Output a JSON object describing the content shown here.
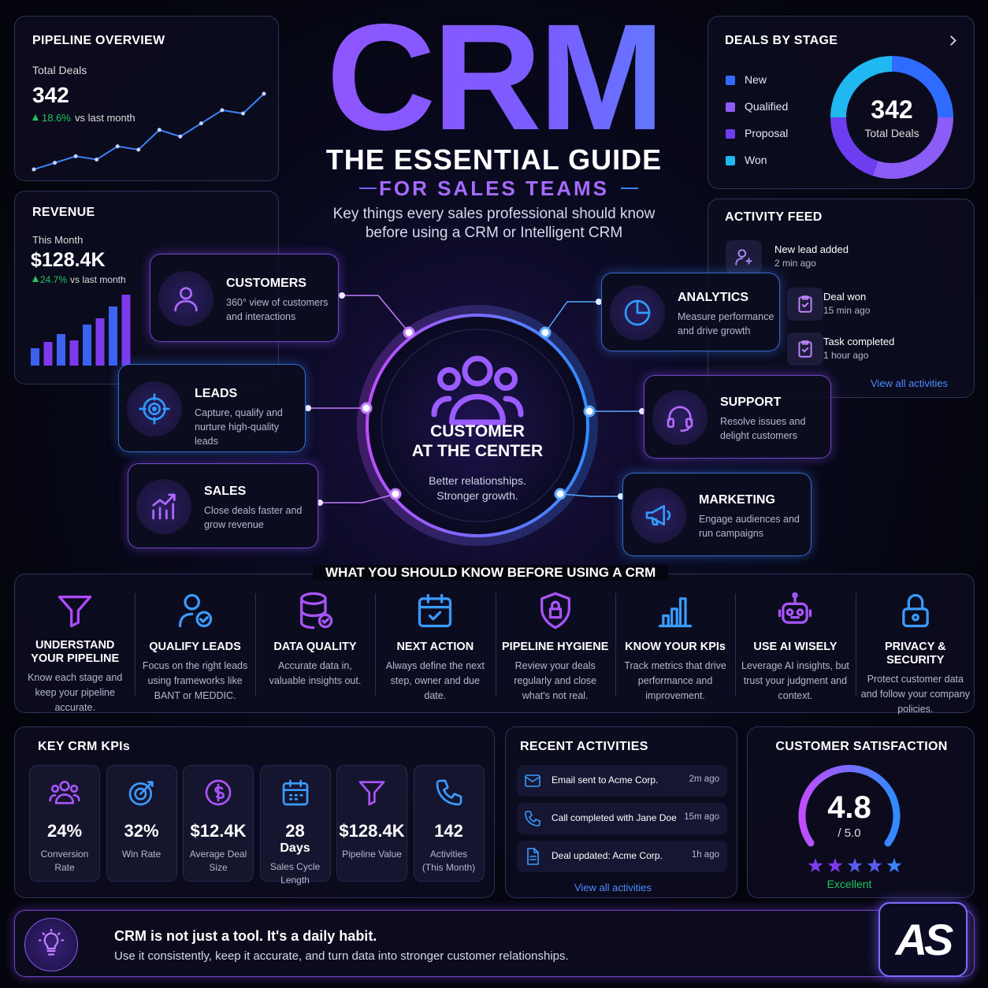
{
  "title": "CRM",
  "subtitle": "THE ESSENTIAL GUIDE",
  "tagline": "FOR SALES TEAMS",
  "intro": [
    "Key things every sales professional should know",
    "before using a CRM or Intelligent CRM"
  ],
  "pipeline_overview": {
    "title": "PIPELINE OVERVIEW",
    "label": "Total Deals",
    "value": "342",
    "change": "18.6%",
    "change_note": "vs last month",
    "trend": [
      10,
      12,
      14,
      13,
      17,
      16,
      22,
      20,
      24,
      28,
      27,
      33
    ]
  },
  "revenue": {
    "title": "REVENUE",
    "label": "This Month",
    "value": "$128.4K",
    "change": "24.7%",
    "change_note": "vs last month",
    "bars": [
      22,
      30,
      40,
      32,
      52,
      60,
      75,
      90
    ]
  },
  "deals_by_stage": {
    "title": "DEALS BY STAGE",
    "total": "342",
    "total_label": "Total Deals",
    "stages": [
      {
        "name": "New",
        "color": "#2f6bff",
        "value": 25
      },
      {
        "name": "Qualified",
        "color": "#8b5cf6",
        "value": 30
      },
      {
        "name": "Proposal",
        "color": "#6d3df0",
        "value": 20
      },
      {
        "name": "Won",
        "color": "#1fb8f0",
        "value": 25
      }
    ]
  },
  "activity_feed": {
    "title": "ACTIVITY FEED",
    "link": "View all activities",
    "items": [
      {
        "text": "New lead added",
        "time": "2 min ago"
      },
      {
        "text": "Deal won",
        "time": "15 min ago"
      },
      {
        "text": "Task completed",
        "time": "1 hour ago"
      }
    ]
  },
  "center": {
    "title": [
      "CUSTOMER",
      "AT THE CENTER"
    ],
    "text": [
      "Better relationships.",
      "Stronger growth."
    ]
  },
  "pillars": [
    {
      "title": "CUSTOMERS",
      "text": "360° view of customers and interactions"
    },
    {
      "title": "LEADS",
      "text": "Capture, qualify and nurture high-quality leads"
    },
    {
      "title": "SALES",
      "text": "Close deals faster and grow revenue"
    },
    {
      "title": "ANALYTICS",
      "text": "Measure performance and drive growth"
    },
    {
      "title": "SUPPORT",
      "text": "Resolve issues and delight customers"
    },
    {
      "title": "MARKETING",
      "text": "Engage audiences and run campaigns"
    }
  ],
  "know": {
    "title": "WHAT YOU SHOULD KNOW BEFORE USING A CRM",
    "items": [
      {
        "title": "UNDERSTAND YOUR PIPELINE",
        "text": "Know each stage and keep your pipeline accurate."
      },
      {
        "title": "QUALIFY LEADS",
        "text": "Focus on the right leads using frameworks like BANT or MEDDIC."
      },
      {
        "title": "DATA QUALITY",
        "text": "Accurate data in, valuable insights out."
      },
      {
        "title": "NEXT ACTION",
        "text": "Always define the next step, owner and due date."
      },
      {
        "title": "PIPELINE HYGIENE",
        "text": "Review your deals regularly and close what's not real."
      },
      {
        "title": "KNOW YOUR KPIs",
        "text": "Track metrics that drive performance and improvement."
      },
      {
        "title": "USE AI WISELY",
        "text": "Leverage AI insights, but trust your judgment and context."
      },
      {
        "title": "PRIVACY & SECURITY",
        "text": "Protect customer data and follow your company policies."
      }
    ]
  },
  "kpis": {
    "title": "KEY CRM KPIs",
    "items": [
      {
        "value": "24%",
        "label": "Conversion Rate"
      },
      {
        "value": "32%",
        "label": "Win Rate"
      },
      {
        "value": "$12.4K",
        "label": "Average Deal Size"
      },
      {
        "value": "28",
        "unit": "Days",
        "label": "Sales Cycle Length"
      },
      {
        "value": "$128.4K",
        "label": "Pipeline Value"
      },
      {
        "value": "142",
        "label": "Activities (This Month)"
      }
    ]
  },
  "recent": {
    "title": "RECENT ACTIVITIES",
    "link": "View all activities",
    "items": [
      {
        "text": "Email sent to Acme Corp.",
        "time": "2m ago"
      },
      {
        "text": "Call completed with Jane Doe",
        "time": "15m ago"
      },
      {
        "text": "Deal updated: Acme Corp.",
        "time": "1h ago"
      }
    ]
  },
  "satisfaction": {
    "title": "CUSTOMER SATISFACTION",
    "score": "4.8",
    "scale": "/ 5.0",
    "rating": "Excellent"
  },
  "footer": {
    "headline": "CRM is not just a tool. It's a daily habit.",
    "text": "Use it consistently, keep it accurate, and turn data into stronger customer relationships.",
    "logo": "AS"
  }
}
